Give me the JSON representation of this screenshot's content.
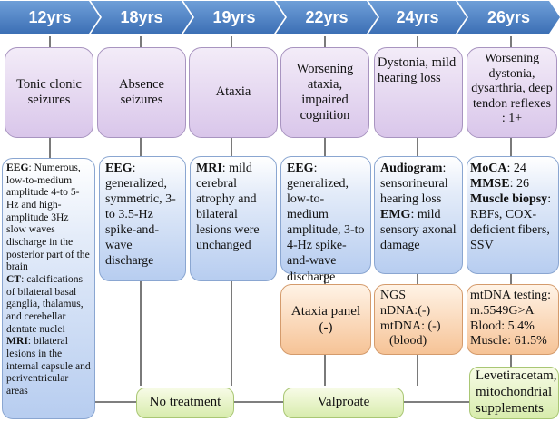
{
  "timeline": [
    "12yrs",
    "18yrs",
    "19yrs",
    "22yrs",
    "24yrs",
    "26yrs"
  ],
  "symptoms": [
    "Tonic clonic seizures",
    "Absence seizures",
    "Ataxia",
    "Worsening ataxia, impaired cognition",
    "Dystonia, mild hearing loss",
    "Worsening dystonia, dysarthria, deep tendon reflexes : 1+"
  ],
  "exams": {
    "e12": {
      "eeg_label": "EEG",
      "eeg_text": ": Numerous, low-to-medium amplitude 4-to 5-Hz and high-amplitude 3Hz slow waves discharge in the posterior part of the brain",
      "ct_label": "CT",
      "ct_text": ": calcifications of bilateral basal ganglia, thalamus, and cerebellar dentate nuclei",
      "mri_label": "MRI",
      "mri_text": ": bilateral lesions in the internal capsule and periventricular areas"
    },
    "e18": {
      "eeg_label": "EEG",
      "eeg_text": ": generalized, symmetric, 3- to 3.5-Hz spike-and-wave discharge"
    },
    "e19": {
      "mri_label": "MRI",
      "mri_text": ": mild cerebral atrophy and bilateral lesions were unchanged"
    },
    "e22": {
      "eeg_label": "EEG",
      "eeg_text": ": generalized, low-to-medium amplitude, 3-to 4-Hz spike-and-wave discharge"
    },
    "e24": {
      "aud_label": "Audiogram",
      "aud_text": ": sensorineural hearing loss",
      "emg_label": "EMG",
      "emg_text": ": mild sensory axonal damage"
    },
    "e26": {
      "moca_label": "MoCA",
      "moca_text": ": 24",
      "mmse_label": "MMSE",
      "mmse_text": ": 26",
      "mb_label": "Muscle biopsy",
      "mb_text": ": RBFs, COX-deficient fibers, SSV"
    }
  },
  "genetic": {
    "g22": "Ataxia panel (-)",
    "g24": {
      "l1": "NGS",
      "l2": "nDNA:(-)",
      "l3": "mtDNA: (-)",
      "l4": "(blood)"
    },
    "g26": {
      "l1": "mtDNA testing:",
      "l2": "m.5549G>A",
      "l3": "Blood: 5.4%",
      "l4": "Muscle: 61.5%"
    }
  },
  "treatments": {
    "none": "No treatment",
    "valproate": "Valproate",
    "lev": "Levetiracetam, mitochondrial supplements"
  }
}
